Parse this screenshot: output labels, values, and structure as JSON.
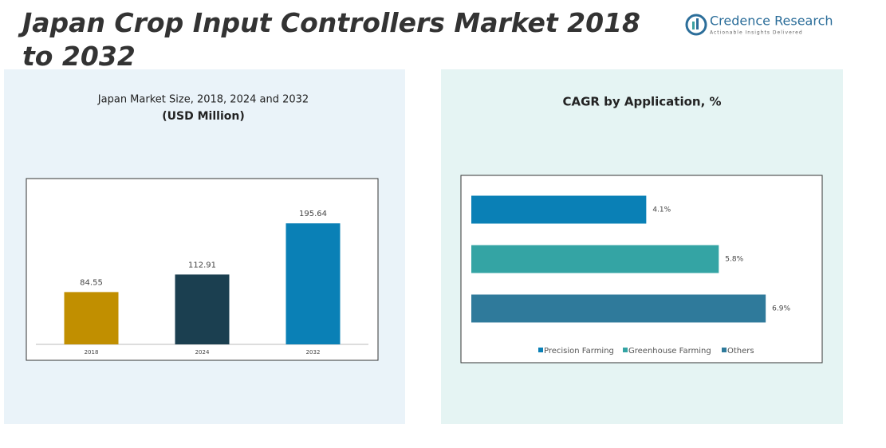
{
  "brand": {
    "name": "Credence Research",
    "tagline": "Actionable Insights Delivered"
  },
  "title": "Japan Crop Input Controllers Market 2018 to 2032",
  "chart_data": [
    {
      "type": "bar",
      "title": "Japan Market Size, 2018, 2024 and 2032",
      "subtitle": "(USD Million)",
      "categories": [
        "2018",
        "2024",
        "2032"
      ],
      "values": [
        84.55,
        112.91,
        195.64
      ],
      "colors": [
        "#c18f00",
        "#1b3f50",
        "#0a80b6"
      ],
      "ylim": [
        0,
        250
      ]
    },
    {
      "type": "barh",
      "title": "CAGR by Application, %",
      "categories": [
        "Precision Farming",
        "Greenhouse Farming",
        "Others"
      ],
      "values": [
        4.1,
        5.8,
        6.9
      ],
      "value_labels": [
        "4.1%",
        "5.8%",
        "6.9%"
      ],
      "colors": [
        "#0a80b6",
        "#34a4a4",
        "#2f7a9b"
      ],
      "xlim": [
        0,
        8
      ],
      "legend": "bottom"
    }
  ]
}
